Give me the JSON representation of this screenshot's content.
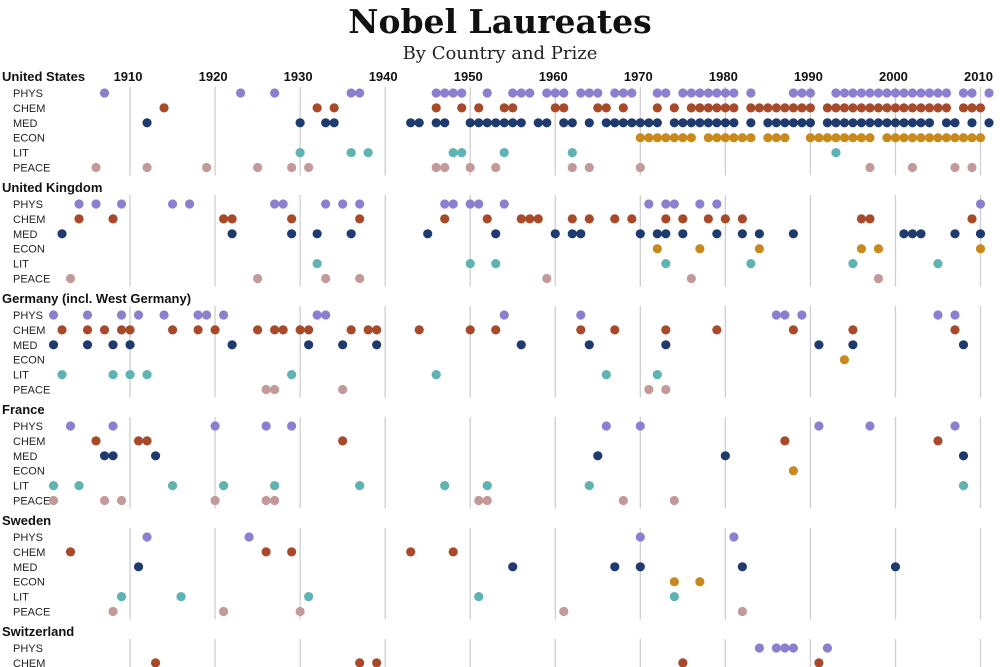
{
  "chart_data": {
    "type": "scatter",
    "title": "Nobel Laureates",
    "subtitle": "By Country and Prize",
    "x_ticks": [
      1910,
      1920,
      1930,
      1940,
      1950,
      1960,
      1970,
      1980,
      1990,
      2000,
      2010
    ],
    "xlim": [
      1901,
      2011
    ],
    "categories": [
      "PHYS",
      "CHEM",
      "MED",
      "ECON",
      "LIT",
      "PEACE"
    ],
    "colors": {
      "PHYS": "#8c7fd0",
      "CHEM": "#a84a2a",
      "MED": "#1f3a6e",
      "ECON": "#c98a1b",
      "LIT": "#5fb3b3",
      "PEACE": "#c4999a"
    },
    "countries": [
      {
        "name": "United States",
        "series": {
          "PHYS": [
            1907,
            1923,
            1927,
            1936,
            1937,
            1946,
            1947,
            1948,
            1949,
            1952,
            1955,
            1956,
            1957,
            1959,
            1960,
            1961,
            1963,
            1964,
            1965,
            1967,
            1968,
            1969,
            1972,
            1973,
            1975,
            1976,
            1977,
            1978,
            1979,
            1980,
            1981,
            1983,
            1988,
            1989,
            1990,
            1993,
            1994,
            1995,
            1996,
            1997,
            1998,
            1999,
            2000,
            2001,
            2002,
            2003,
            2004,
            2005,
            2006,
            2008,
            2009,
            2011
          ],
          "CHEM": [
            1914,
            1932,
            1934,
            1946,
            1949,
            1951,
            1954,
            1955,
            1960,
            1961,
            1965,
            1966,
            1968,
            1972,
            1974,
            1976,
            1977,
            1978,
            1979,
            1980,
            1981,
            1983,
            1984,
            1985,
            1986,
            1987,
            1988,
            1989,
            1990,
            1992,
            1993,
            1994,
            1995,
            1996,
            1997,
            1998,
            1999,
            2000,
            2001,
            2002,
            2003,
            2004,
            2005,
            2006,
            2008,
            2009,
            2010
          ],
          "MED": [
            1912,
            1930,
            1933,
            1934,
            1943,
            1944,
            1946,
            1947,
            1950,
            1951,
            1952,
            1953,
            1954,
            1955,
            1956,
            1958,
            1959,
            1961,
            1962,
            1964,
            1966,
            1967,
            1968,
            1969,
            1970,
            1971,
            1972,
            1974,
            1975,
            1976,
            1977,
            1978,
            1979,
            1980,
            1981,
            1983,
            1985,
            1986,
            1987,
            1988,
            1989,
            1990,
            1992,
            1993,
            1994,
            1995,
            1996,
            1997,
            1998,
            1999,
            2000,
            2001,
            2002,
            2003,
            2004,
            2006,
            2007,
            2009,
            2011
          ],
          "ECON": [
            1970,
            1971,
            1972,
            1973,
            1974,
            1975,
            1976,
            1978,
            1979,
            1980,
            1981,
            1982,
            1983,
            1985,
            1986,
            1987,
            1990,
            1991,
            1992,
            1993,
            1994,
            1995,
            1996,
            1997,
            1999,
            2000,
            2001,
            2002,
            2003,
            2004,
            2005,
            2006,
            2007,
            2008,
            2009,
            2010
          ],
          "LIT": [
            1930,
            1936,
            1938,
            1948,
            1949,
            1954,
            1962,
            1993
          ],
          "PEACE": [
            1906,
            1912,
            1919,
            1925,
            1929,
            1931,
            1946,
            1947,
            1950,
            1953,
            1962,
            1964,
            1970,
            1997,
            2002,
            2007,
            2009
          ]
        }
      },
      {
        "name": "United Kingdom",
        "series": {
          "PHYS": [
            1904,
            1906,
            1909,
            1915,
            1917,
            1927,
            1928,
            1933,
            1935,
            1937,
            1947,
            1948,
            1950,
            1951,
            1954,
            1971,
            1973,
            1974,
            1977,
            1979,
            2010
          ],
          "CHEM": [
            1904,
            1908,
            1921,
            1922,
            1929,
            1937,
            1947,
            1952,
            1956,
            1957,
            1958,
            1962,
            1964,
            1967,
            1969,
            1973,
            1975,
            1978,
            1980,
            1982,
            1996,
            1997,
            2009
          ],
          "MED": [
            1902,
            1922,
            1929,
            1932,
            1936,
            1945,
            1953,
            1960,
            1962,
            1963,
            1970,
            1972,
            1973,
            1975,
            1979,
            1982,
            1984,
            1988,
            2001,
            2002,
            2003,
            2007,
            2010
          ],
          "ECON": [
            1972,
            1977,
            1984,
            1996,
            1998,
            2010
          ],
          "LIT": [
            1932,
            1950,
            1953,
            1973,
            1983,
            1995,
            2005
          ],
          "PEACE": [
            1903,
            1925,
            1933,
            1937,
            1959,
            1976,
            1998
          ]
        }
      },
      {
        "name": "Germany (incl. West Germany)",
        "series": {
          "PHYS": [
            1901,
            1905,
            1909,
            1911,
            1914,
            1918,
            1919,
            1921,
            1932,
            1933,
            1954,
            1963,
            1986,
            1987,
            1989,
            2005,
            2007
          ],
          "CHEM": [
            1902,
            1905,
            1907,
            1909,
            1910,
            1915,
            1918,
            1920,
            1925,
            1927,
            1928,
            1930,
            1931,
            1936,
            1938,
            1939,
            1944,
            1950,
            1953,
            1963,
            1967,
            1973,
            1979,
            1988,
            1995,
            2007
          ],
          "MED": [
            1901,
            1905,
            1908,
            1910,
            1922,
            1931,
            1935,
            1939,
            1956,
            1964,
            1973,
            1991,
            1995,
            2008
          ],
          "ECON": [
            1994
          ],
          "LIT": [
            1902,
            1908,
            1910,
            1912,
            1929,
            1946,
            1966,
            1972
          ],
          "PEACE": [
            1926,
            1927,
            1935,
            1971,
            1973
          ]
        }
      },
      {
        "name": "France",
        "series": {
          "PHYS": [
            1903,
            1908,
            1920,
            1926,
            1929,
            1966,
            1970,
            1991,
            1997,
            2007
          ],
          "CHEM": [
            1906,
            1911,
            1912,
            1935,
            1987,
            2005
          ],
          "MED": [
            1907,
            1908,
            1913,
            1965,
            1980,
            2008
          ],
          "ECON": [
            1988
          ],
          "LIT": [
            1901,
            1904,
            1915,
            1921,
            1927,
            1937,
            1947,
            1952,
            1964,
            2008
          ],
          "PEACE": [
            1901,
            1907,
            1909,
            1920,
            1926,
            1927,
            1951,
            1952,
            1968,
            1974
          ]
        }
      },
      {
        "name": "Sweden",
        "series": {
          "PHYS": [
            1912,
            1924,
            1970,
            1981
          ],
          "CHEM": [
            1903,
            1926,
            1929,
            1943,
            1948
          ],
          "MED": [
            1911,
            1955,
            1967,
            1970,
            1982,
            2000
          ],
          "ECON": [
            1974,
            1977
          ],
          "LIT": [
            1909,
            1916,
            1931,
            1951,
            1974
          ],
          "PEACE": [
            1908,
            1921,
            1930,
            1961,
            1982
          ]
        }
      },
      {
        "name": "Switzerland",
        "series": {
          "PHYS": [
            1984,
            1986,
            1987,
            1988,
            1992
          ],
          "CHEM": [
            1913,
            1937,
            1939,
            1975,
            1991
          ],
          "MED": [],
          "ECON": [],
          "LIT": [],
          "PEACE": []
        }
      }
    ]
  }
}
